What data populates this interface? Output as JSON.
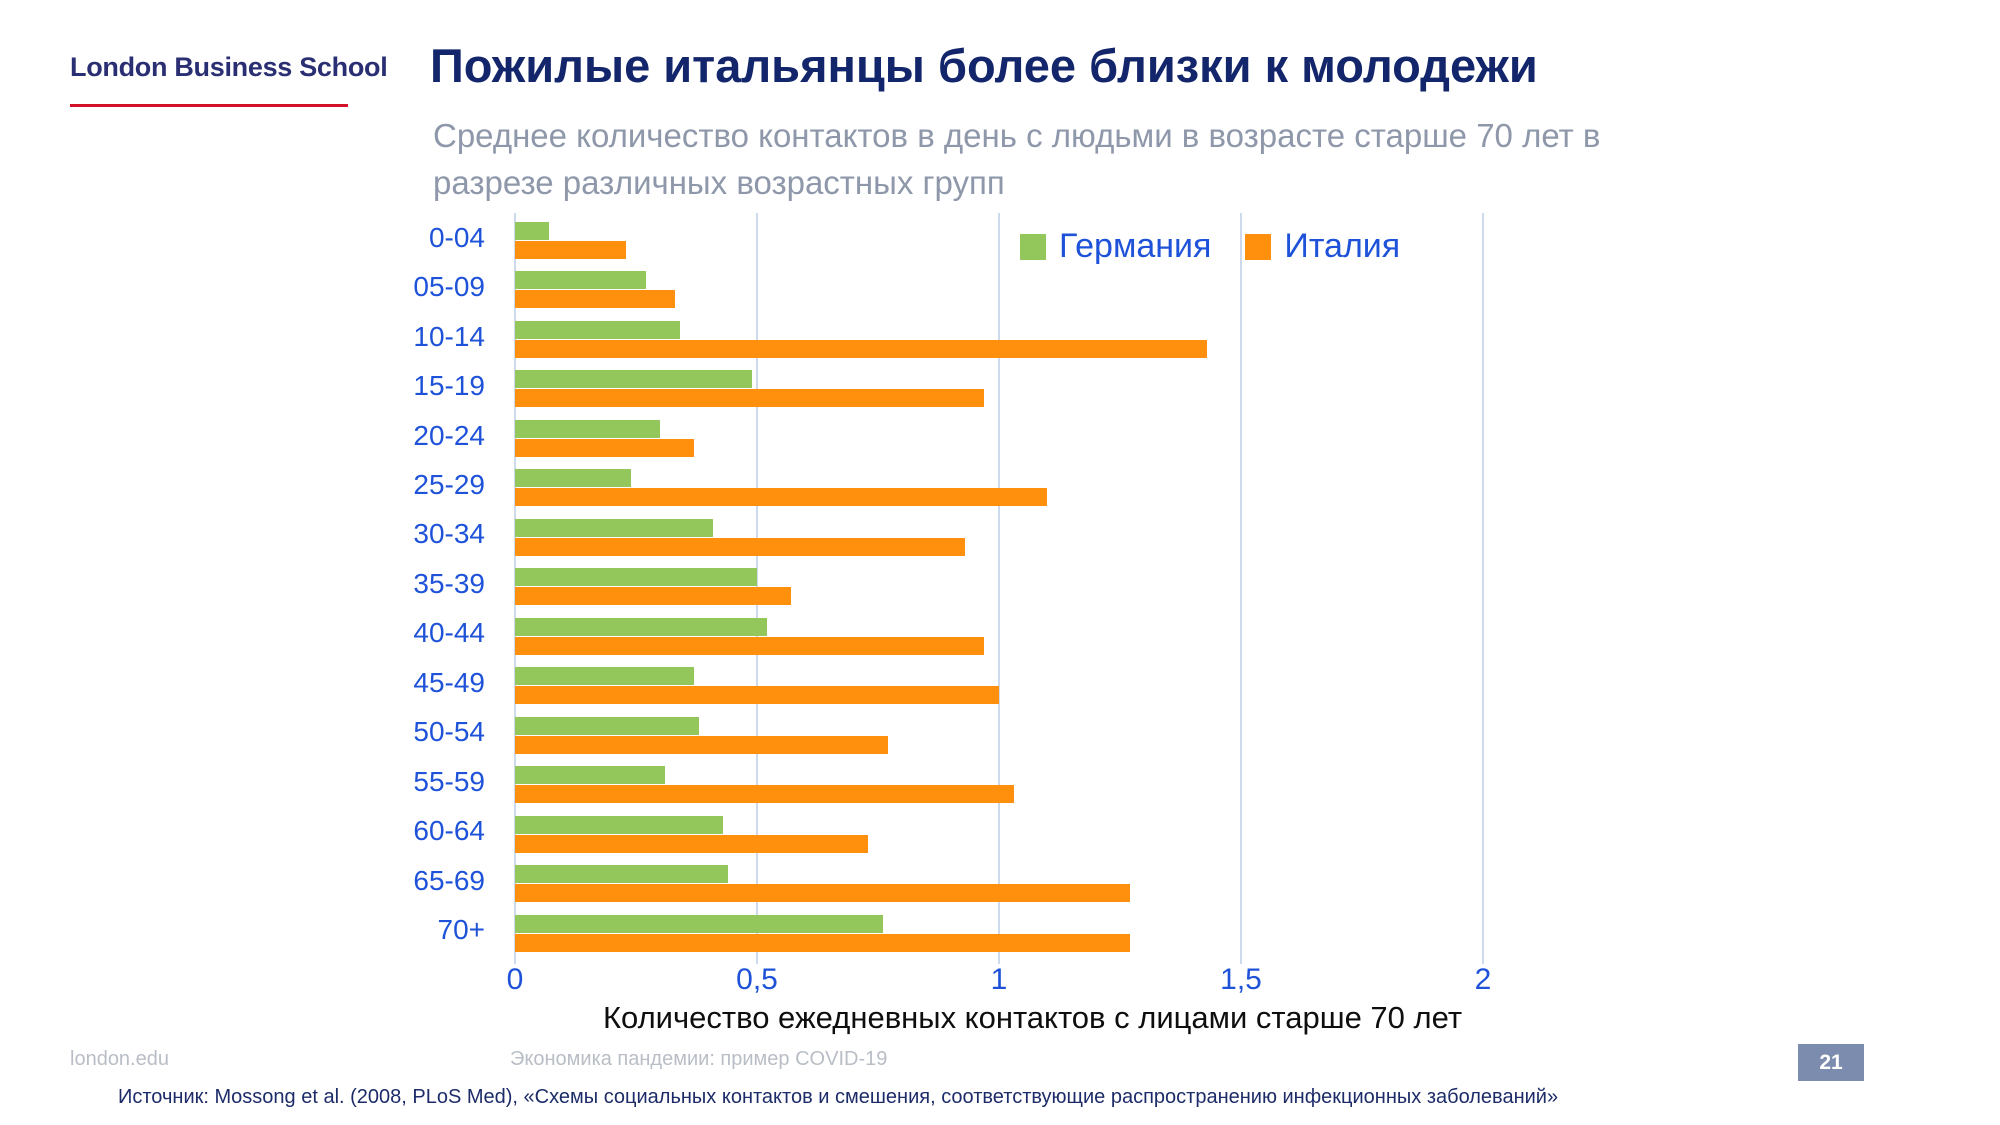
{
  "slide": {
    "logo_text": "London Business School",
    "title": "Пожилые итальянцы более близки к молодежи",
    "subtitle_lines": [
      "Среднее количество контактов в день с людьми в возрасте старше 70 лет в",
      "разрезе различных возрастных групп"
    ],
    "footer": {
      "site": "london.edu",
      "course": "Экономика пандемии: пример COVID-19",
      "page_number": "21",
      "source": "Источник: Mossong et al. (2008, PLoS Med), «Схемы социальных контактов и смешения, соответствующие распространению инфекционных заболеваний»"
    }
  },
  "chart_data": {
    "type": "bar",
    "orientation": "horizontal",
    "title": "Пожилые итальянцы более близки к молодежи",
    "subtitle": "Среднее количество контактов в день с людьми в возрасте старше 70 лет в разрезе различных возрастных групп",
    "xlabel": "Количество ежедневных контактов с лицами старше 70 лет",
    "categories": [
      "0-04",
      "05-09",
      "10-14",
      "15-19",
      "20-24",
      "25-29",
      "30-34",
      "35-39",
      "40-44",
      "45-49",
      "50-54",
      "55-59",
      "60-64",
      "65-69",
      "70+"
    ],
    "series": [
      {
        "name": "Германия",
        "color": "#94C75B",
        "values": [
          0.07,
          0.27,
          0.34,
          0.49,
          0.3,
          0.24,
          0.41,
          0.5,
          0.52,
          0.37,
          0.38,
          0.31,
          0.43,
          0.44,
          0.76
        ]
      },
      {
        "name": "Италия",
        "color": "#FF900E",
        "values": [
          0.23,
          0.33,
          1.43,
          0.97,
          0.37,
          1.1,
          0.93,
          0.57,
          0.97,
          1.0,
          0.77,
          1.03,
          0.73,
          1.27,
          1.27
        ]
      }
    ],
    "x_ticks": [
      {
        "value": 0,
        "label": "0"
      },
      {
        "value": 0.5,
        "label": "0,5"
      },
      {
        "value": 1,
        "label": "1"
      },
      {
        "value": 1.5,
        "label": "1,5"
      },
      {
        "value": 2,
        "label": "2"
      }
    ],
    "xlim": [
      0,
      2.17
    ],
    "grid": true,
    "legend_position": "top-right"
  },
  "colors": {
    "title_navy": "#13266B",
    "subtitle_gray": "#8E98AA",
    "axis_label_blue": "#1E52D8",
    "germany_green": "#94C75B",
    "italy_orange": "#FF900E",
    "gridline": "#CDD9EC",
    "footer_gray": "#B9BEC6",
    "source_navy": "#1D2C69",
    "page_badge_bg": "#7C8CAE",
    "lbs_red": "#D31127",
    "lbs_navy": "#2A2E72"
  }
}
